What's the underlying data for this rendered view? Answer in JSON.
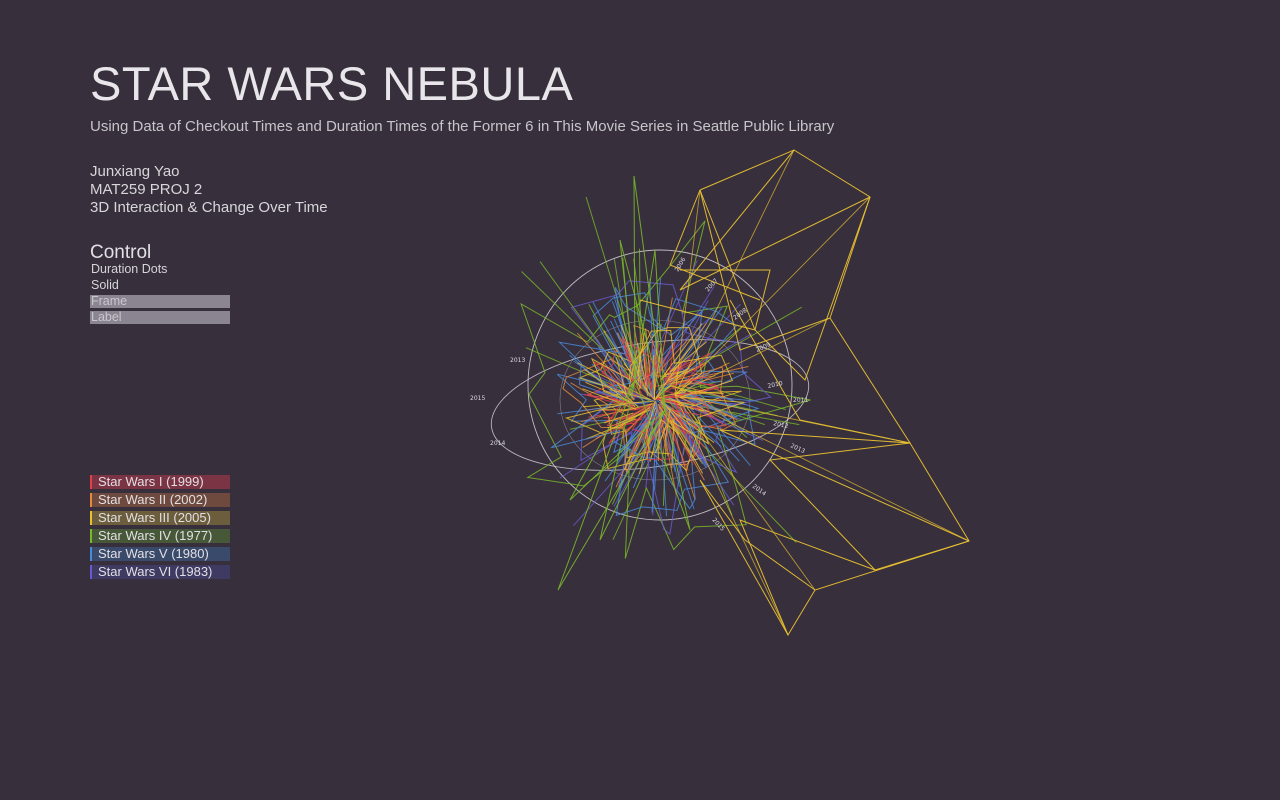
{
  "header": {
    "title": "STAR WARS NEBULA",
    "subtitle": "Using Data of Checkout Times and Duration Times of the Former 6 in This Movie Series in Seattle Public Library"
  },
  "author": {
    "name": "Junxiang Yao",
    "project": "MAT259 PROJ 2",
    "description": "3D Interaction & Change Over Time"
  },
  "control": {
    "title": "Control",
    "toggles": [
      {
        "label": "Duration Dots",
        "active": false
      },
      {
        "label": "Solid",
        "active": false
      },
      {
        "label": "Frame",
        "active": true
      },
      {
        "label": "Label",
        "active": true
      }
    ]
  },
  "legend": {
    "items": [
      {
        "label": "Star Wars I (1999)",
        "color": "#e0404a",
        "bg": "#7a3444"
      },
      {
        "label": "Star Wars II (2002)",
        "color": "#e68a3a",
        "bg": "#6e4a3e"
      },
      {
        "label": "Star Wars III (2005)",
        "color": "#e8c030",
        "bg": "#6c5e3c"
      },
      {
        "label": "Star Wars IV (1977)",
        "color": "#7ab82a",
        "bg": "#475838"
      },
      {
        "label": "Star Wars V (1980)",
        "color": "#4a8ad8",
        "bg": "#3a4a6a"
      },
      {
        "label": "Star Wars VI (1983)",
        "color": "#6a5ad0",
        "bg": "#3e3a62"
      }
    ]
  },
  "visualization": {
    "ring_labels": [
      "2006",
      "2007",
      "2008",
      "2009",
      "2010",
      "2011",
      "2012",
      "2013",
      "2014",
      "2015"
    ]
  }
}
